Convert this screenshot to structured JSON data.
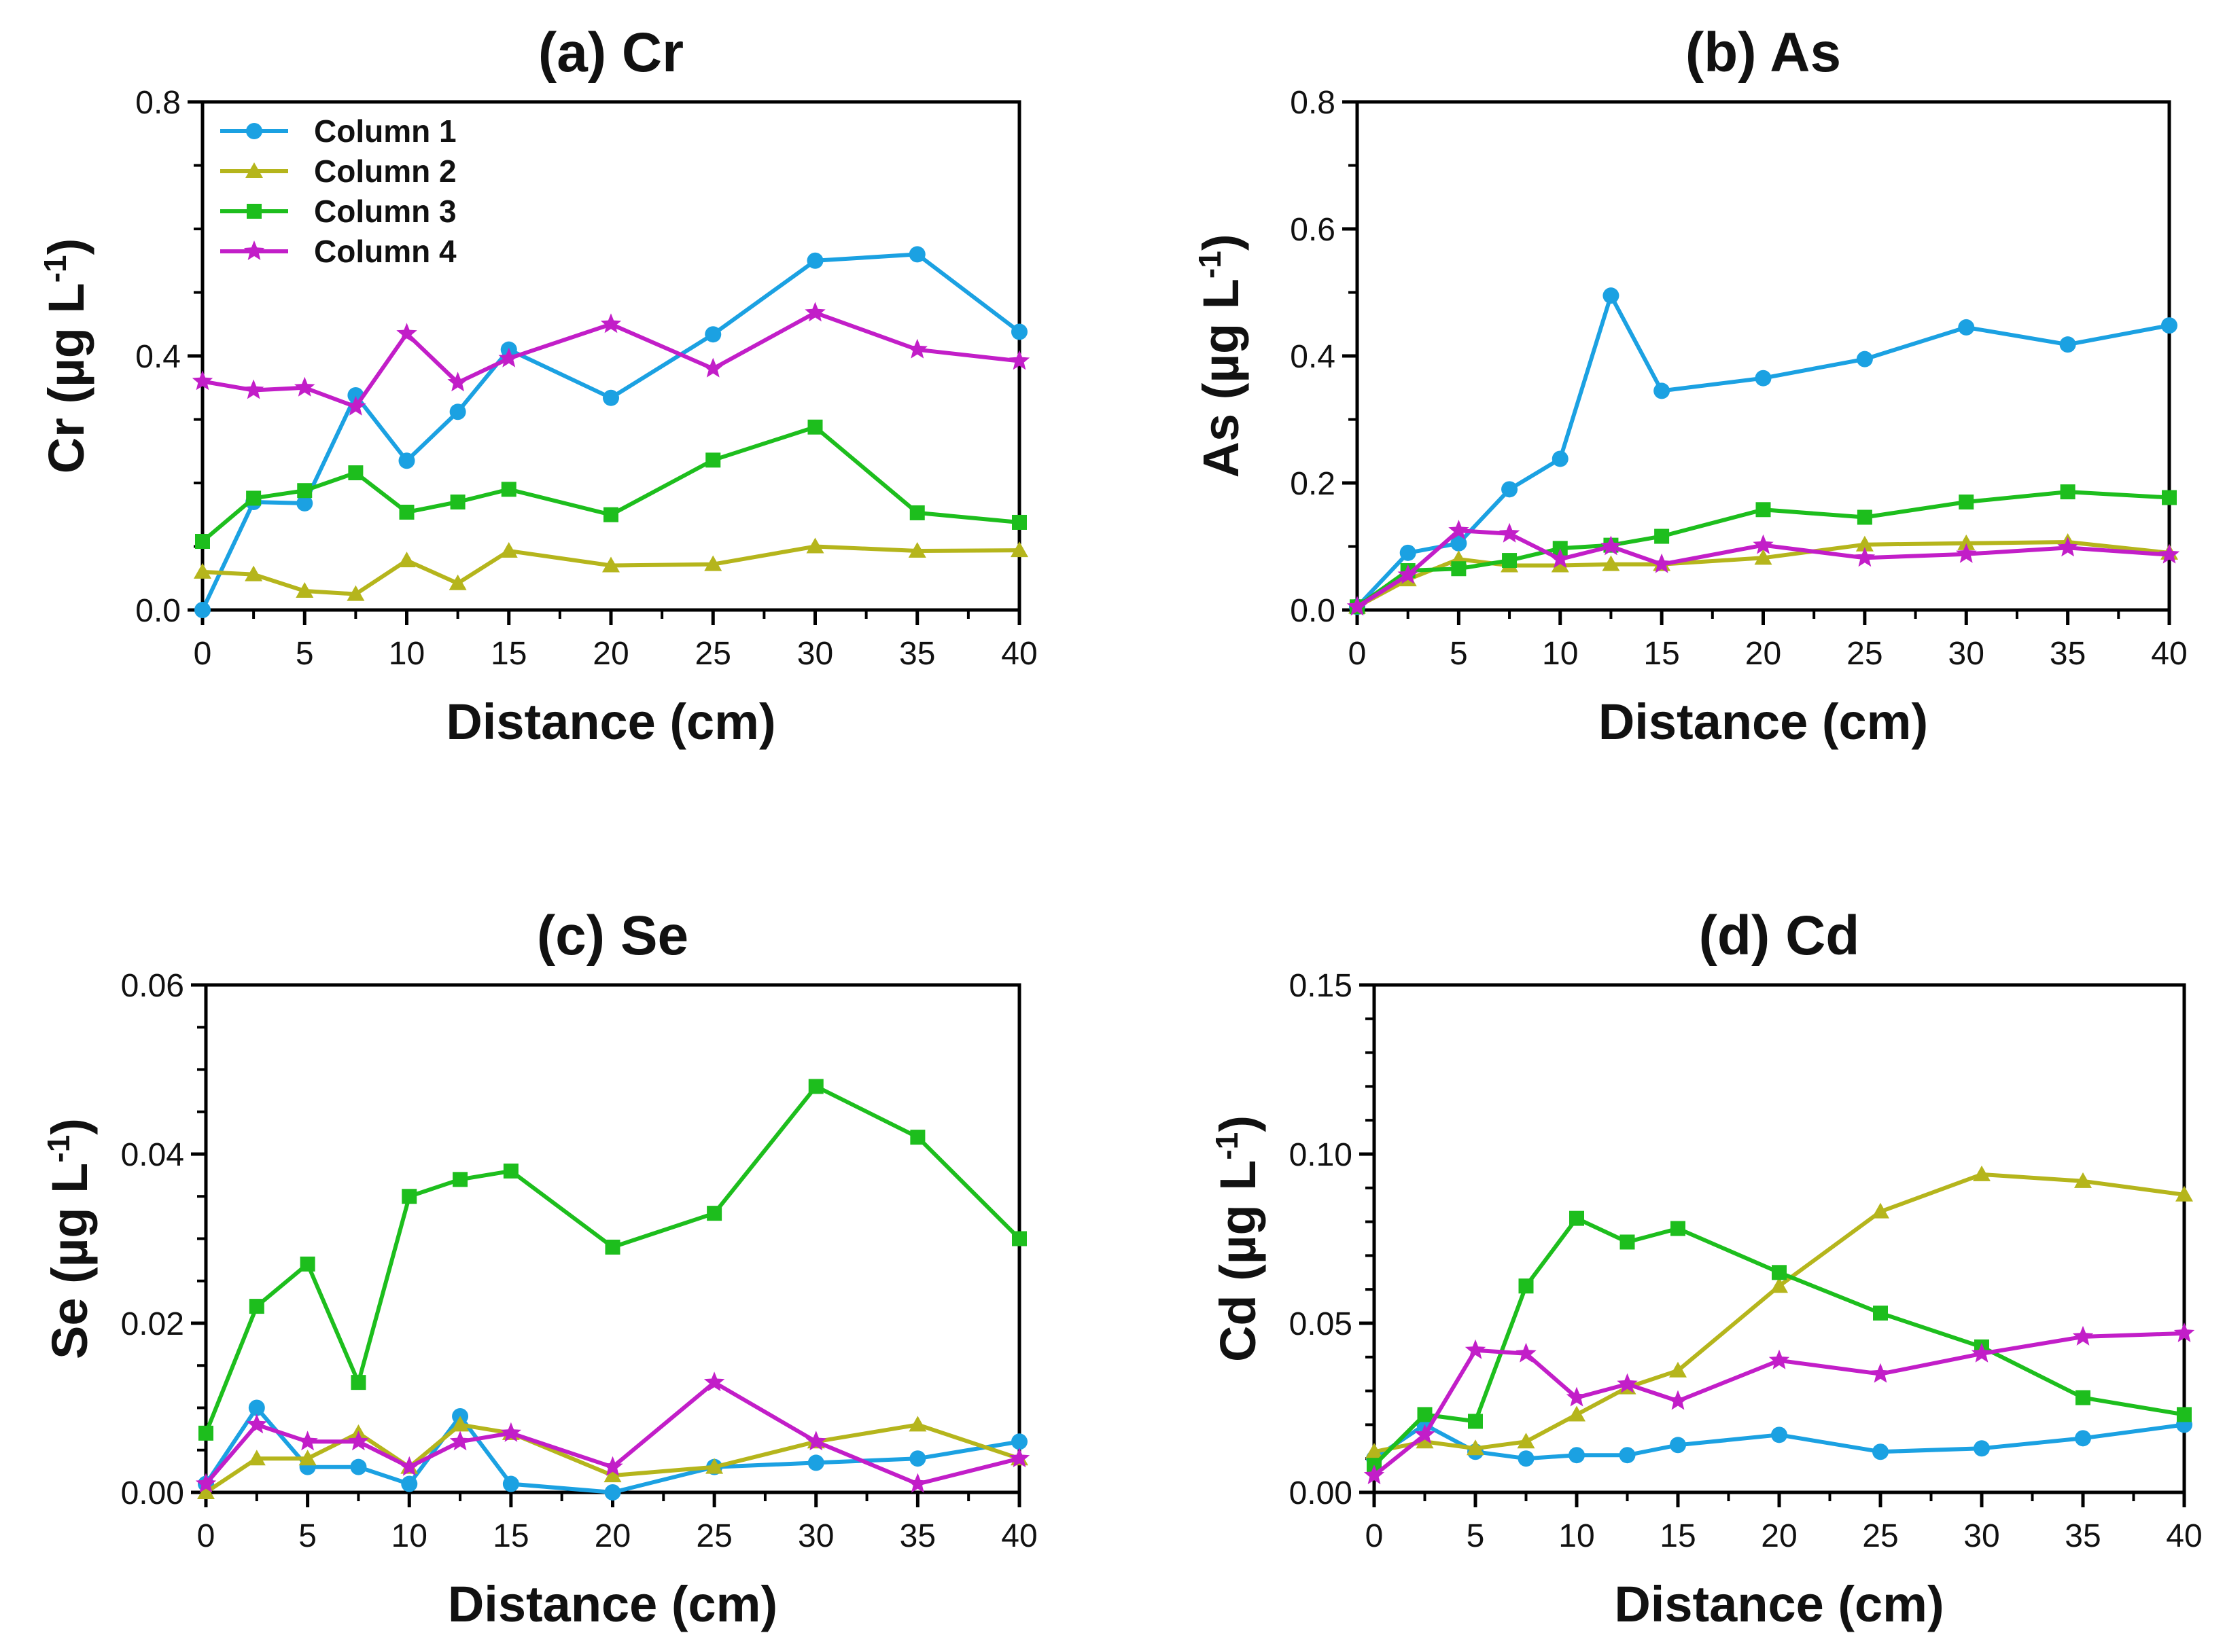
{
  "figure": {
    "series_names": [
      "Column 1",
      "Column 2",
      "Column 3",
      "Column 4"
    ],
    "series_colors": [
      "#1ba1e2",
      "#b5b51c",
      "#1dbe1d",
      "#c21ec8"
    ],
    "series_markers": [
      "circle",
      "triangle",
      "square",
      "star"
    ]
  },
  "chart_data": [
    {
      "type": "line",
      "title": "(a) Cr",
      "xlabel": "Distance (cm)",
      "ylabel_main": "Cr (µg L",
      "ylabel_sup": "-1",
      "ylabel_end": ")",
      "xlim": [
        0,
        40
      ],
      "ylim": [
        0,
        0.8
      ],
      "xticks": [
        0,
        5,
        10,
        15,
        20,
        25,
        30,
        35,
        40
      ],
      "yticks": [
        0.0,
        0.4,
        0.8
      ],
      "ytick_labels": [
        "0.0",
        "0.4",
        "0.8"
      ],
      "yminor_step": 0.1,
      "legend": "top-left",
      "x": [
        0,
        2.5,
        5,
        7.5,
        10,
        12.5,
        15,
        20,
        25,
        30,
        35,
        40
      ],
      "series": [
        {
          "name": "Column 1",
          "values": [
            0.0,
            0.17,
            0.168,
            0.338,
            0.235,
            0.312,
            0.41,
            0.334,
            0.434,
            0.55,
            0.56,
            0.438
          ]
        },
        {
          "name": "Column 2",
          "values": [
            0.06,
            0.056,
            0.03,
            0.025,
            0.078,
            0.042,
            0.093,
            0.07,
            0.072,
            0.1,
            0.093,
            0.094
          ]
        },
        {
          "name": "Column 3",
          "values": [
            0.108,
            0.176,
            0.188,
            0.216,
            0.154,
            0.17,
            0.19,
            0.15,
            0.236,
            0.288,
            0.153,
            0.138
          ]
        },
        {
          "name": "Column 4",
          "values": [
            0.36,
            0.346,
            0.35,
            0.32,
            0.435,
            0.358,
            0.396,
            0.45,
            0.38,
            0.468,
            0.41,
            0.392
          ]
        }
      ]
    },
    {
      "type": "line",
      "title": "(b) As",
      "xlabel": "Distance (cm)",
      "ylabel_main": "As (µg L",
      "ylabel_sup": "-1",
      "ylabel_end": ")",
      "xlim": [
        0,
        40
      ],
      "ylim": [
        0,
        0.8
      ],
      "xticks": [
        0,
        5,
        10,
        15,
        20,
        25,
        30,
        35,
        40
      ],
      "yticks": [
        0.0,
        0.2,
        0.4,
        0.6,
        0.8
      ],
      "ytick_labels": [
        "0.0",
        "0.2",
        "0.4",
        "0.6",
        "0.8"
      ],
      "yminor_step": 0.1,
      "x": [
        0,
        2.5,
        5,
        7.5,
        10,
        12.5,
        15,
        20,
        25,
        30,
        35,
        40
      ],
      "series": [
        {
          "name": "Column 1",
          "values": [
            0.005,
            0.09,
            0.105,
            0.19,
            0.238,
            0.495,
            0.345,
            0.365,
            0.395,
            0.445,
            0.418,
            0.448
          ]
        },
        {
          "name": "Column 2",
          "values": [
            0.005,
            0.048,
            0.08,
            0.07,
            0.07,
            0.072,
            0.072,
            0.082,
            0.103,
            0.105,
            0.107,
            0.09
          ]
        },
        {
          "name": "Column 3",
          "values": [
            0.005,
            0.062,
            0.065,
            0.078,
            0.097,
            0.102,
            0.116,
            0.158,
            0.146,
            0.17,
            0.186,
            0.177
          ]
        },
        {
          "name": "Column 4",
          "values": [
            0.005,
            0.055,
            0.125,
            0.12,
            0.08,
            0.1,
            0.072,
            0.102,
            0.082,
            0.088,
            0.098,
            0.087
          ]
        }
      ]
    },
    {
      "type": "line",
      "title": "(c) Se",
      "xlabel": "Distance (cm)",
      "ylabel_main": "Se (µg L",
      "ylabel_sup": "-1",
      "ylabel_end": ")",
      "xlim": [
        0,
        40
      ],
      "ylim": [
        0,
        0.06
      ],
      "xticks": [
        0,
        5,
        10,
        15,
        20,
        25,
        30,
        35,
        40
      ],
      "yticks": [
        0.0,
        0.02,
        0.04,
        0.06
      ],
      "ytick_labels": [
        "0.00",
        "0.02",
        "0.04",
        "0.06"
      ],
      "yminor_step": 0.005,
      "x": [
        0,
        2.5,
        5,
        7.5,
        10,
        12.5,
        15,
        20,
        25,
        30,
        35,
        40
      ],
      "series": [
        {
          "name": "Column 1",
          "values": [
            0.001,
            0.01,
            0.003,
            0.003,
            0.001,
            0.009,
            0.001,
            0.0,
            0.003,
            0.0035,
            0.004,
            0.006
          ]
        },
        {
          "name": "Column 2",
          "values": [
            0.0,
            0.004,
            0.004,
            0.007,
            0.003,
            0.008,
            0.007,
            0.002,
            0.003,
            0.006,
            0.008,
            0.004
          ]
        },
        {
          "name": "Column 3",
          "values": [
            0.007,
            0.022,
            0.027,
            0.013,
            0.035,
            0.037,
            0.038,
            0.029,
            0.033,
            0.048,
            0.042,
            0.03
          ]
        },
        {
          "name": "Column 4",
          "values": [
            0.001,
            0.008,
            0.006,
            0.006,
            0.003,
            0.006,
            0.007,
            0.003,
            0.013,
            0.006,
            0.001,
            0.004
          ]
        }
      ]
    },
    {
      "type": "line",
      "title": "(d) Cd",
      "xlabel": "Distance (cm)",
      "ylabel_main": "Cd (µg L",
      "ylabel_sup": "-1",
      "ylabel_end": ")",
      "xlim": [
        0,
        40
      ],
      "ylim": [
        0,
        0.15
      ],
      "xticks": [
        0,
        5,
        10,
        15,
        20,
        25,
        30,
        35,
        40
      ],
      "yticks": [
        0.0,
        0.05,
        0.1,
        0.15
      ],
      "ytick_labels": [
        "0.00",
        "0.05",
        "0.10",
        "0.15"
      ],
      "yminor_step": 0.01,
      "x": [
        0,
        2.5,
        5,
        7.5,
        10,
        12.5,
        15,
        20,
        25,
        30,
        35,
        40
      ],
      "series": [
        {
          "name": "Column 1",
          "values": [
            0.01,
            0.02,
            0.012,
            0.01,
            0.011,
            0.011,
            0.014,
            0.017,
            0.012,
            0.013,
            0.016,
            0.02
          ]
        },
        {
          "name": "Column 2",
          "values": [
            0.012,
            0.015,
            0.013,
            0.015,
            0.023,
            0.031,
            0.036,
            0.061,
            0.083,
            0.094,
            0.092,
            0.088
          ]
        },
        {
          "name": "Column 3",
          "values": [
            0.008,
            0.023,
            0.021,
            0.061,
            0.081,
            0.074,
            0.078,
            0.065,
            0.053,
            0.043,
            0.028,
            0.023
          ]
        },
        {
          "name": "Column 4",
          "values": [
            0.005,
            0.017,
            0.042,
            0.041,
            0.028,
            0.032,
            0.027,
            0.039,
            0.035,
            0.041,
            0.046,
            0.047
          ]
        }
      ]
    }
  ]
}
